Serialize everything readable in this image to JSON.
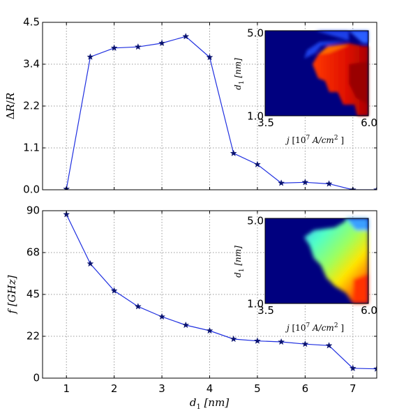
{
  "chart_data": [
    {
      "type": "line",
      "name": "top-panel",
      "ylabel": "ΔR/R",
      "xlabel": "",
      "xlim": [
        0.5,
        7.5
      ],
      "ylim": [
        0.0,
        4.5
      ],
      "x_ticks": [
        "1",
        "2",
        "3",
        "4",
        "5",
        "6",
        "7"
      ],
      "y_ticks": [
        "0.0",
        "1.1",
        "2.2",
        "3.4",
        "4.5"
      ],
      "y_tick_values": [
        0.0,
        1.125,
        2.25,
        3.375,
        4.5
      ],
      "grid": true,
      "series": [
        {
          "name": "ΔR/R",
          "color": "#1f2fe0",
          "marker_color": "#0a1370",
          "x": [
            1,
            1.5,
            2,
            2.5,
            3,
            3.5,
            4,
            4.5,
            5,
            5.5,
            6,
            6.5,
            7,
            7.5
          ],
          "y": [
            0.02,
            3.57,
            3.81,
            3.84,
            3.94,
            4.12,
            3.56,
            0.98,
            0.68,
            0.18,
            0.2,
            0.16,
            0.0,
            0.0
          ]
        }
      ],
      "inset": {
        "type": "heatmap",
        "xlabel": "j [10^7 A/cm^2]",
        "xlabel_main": "j ",
        "xlabel_unit_pre": "[10",
        "xlabel_unit_exp": "7",
        "xlabel_unit_mid": " A/cm",
        "xlabel_unit_exp2": "2",
        "xlabel_unit_post": " ]",
        "ylabel": "d1 [nm]",
        "x_tick_left": "3.5",
        "x_tick_right": "6.0",
        "y_tick_top": "5.0",
        "y_tick_bottom": "1.0",
        "colormap": "jet"
      }
    },
    {
      "type": "line",
      "name": "bottom-panel",
      "ylabel": "f [GHz]",
      "xlabel": "d1 [nm]",
      "xlim": [
        0.5,
        7.5
      ],
      "ylim": [
        0,
        90
      ],
      "x_ticks": [
        "1",
        "2",
        "3",
        "4",
        "5",
        "6",
        "7"
      ],
      "y_ticks": [
        "0",
        "22",
        "45",
        "68",
        "90"
      ],
      "y_tick_values": [
        0,
        22.5,
        45,
        67.5,
        90
      ],
      "grid": true,
      "series": [
        {
          "name": "f",
          "color": "#1f2fe0",
          "marker_color": "#0a1370",
          "x": [
            1,
            1.5,
            2,
            2.5,
            3,
            3.5,
            4,
            4.5,
            5,
            5.5,
            6,
            6.5,
            7,
            7.5
          ],
          "y": [
            88,
            61.5,
            47,
            38.5,
            33,
            28.5,
            25.5,
            21,
            20,
            19.5,
            18.3,
            17.5,
            5.3,
            5.0
          ]
        }
      ],
      "inset": {
        "type": "heatmap",
        "xlabel": "j [10^7 A/cm^2]",
        "xlabel_main": "j ",
        "xlabel_unit_pre": "[10",
        "xlabel_unit_exp": "7",
        "xlabel_unit_mid": " A/cm",
        "xlabel_unit_exp2": "2",
        "xlabel_unit_post": " ]",
        "ylabel": "d1 [nm]",
        "x_tick_left": "3.5",
        "x_tick_right": "6.0",
        "y_tick_top": "5.0",
        "y_tick_bottom": "1.0",
        "colormap": "jet"
      }
    }
  ],
  "xlabel_shared": {
    "main": "d",
    "sub": "1",
    "unit": " [nm]"
  },
  "top_ylabel_parts": {
    "delta": "Δ",
    "r": "R",
    "slash": "/",
    "r2": "R"
  },
  "bottom_ylabel_parts": {
    "f": "f",
    "unit": " [GHz]"
  },
  "inset_ylabel_parts": {
    "d": "d",
    "sub": "1",
    "unit": " [nm]"
  },
  "colors": {
    "line": "#1f2fe0",
    "marker": "#0a1370",
    "grid": "#9a9a9a",
    "heatmap_bg": "#00007f"
  }
}
